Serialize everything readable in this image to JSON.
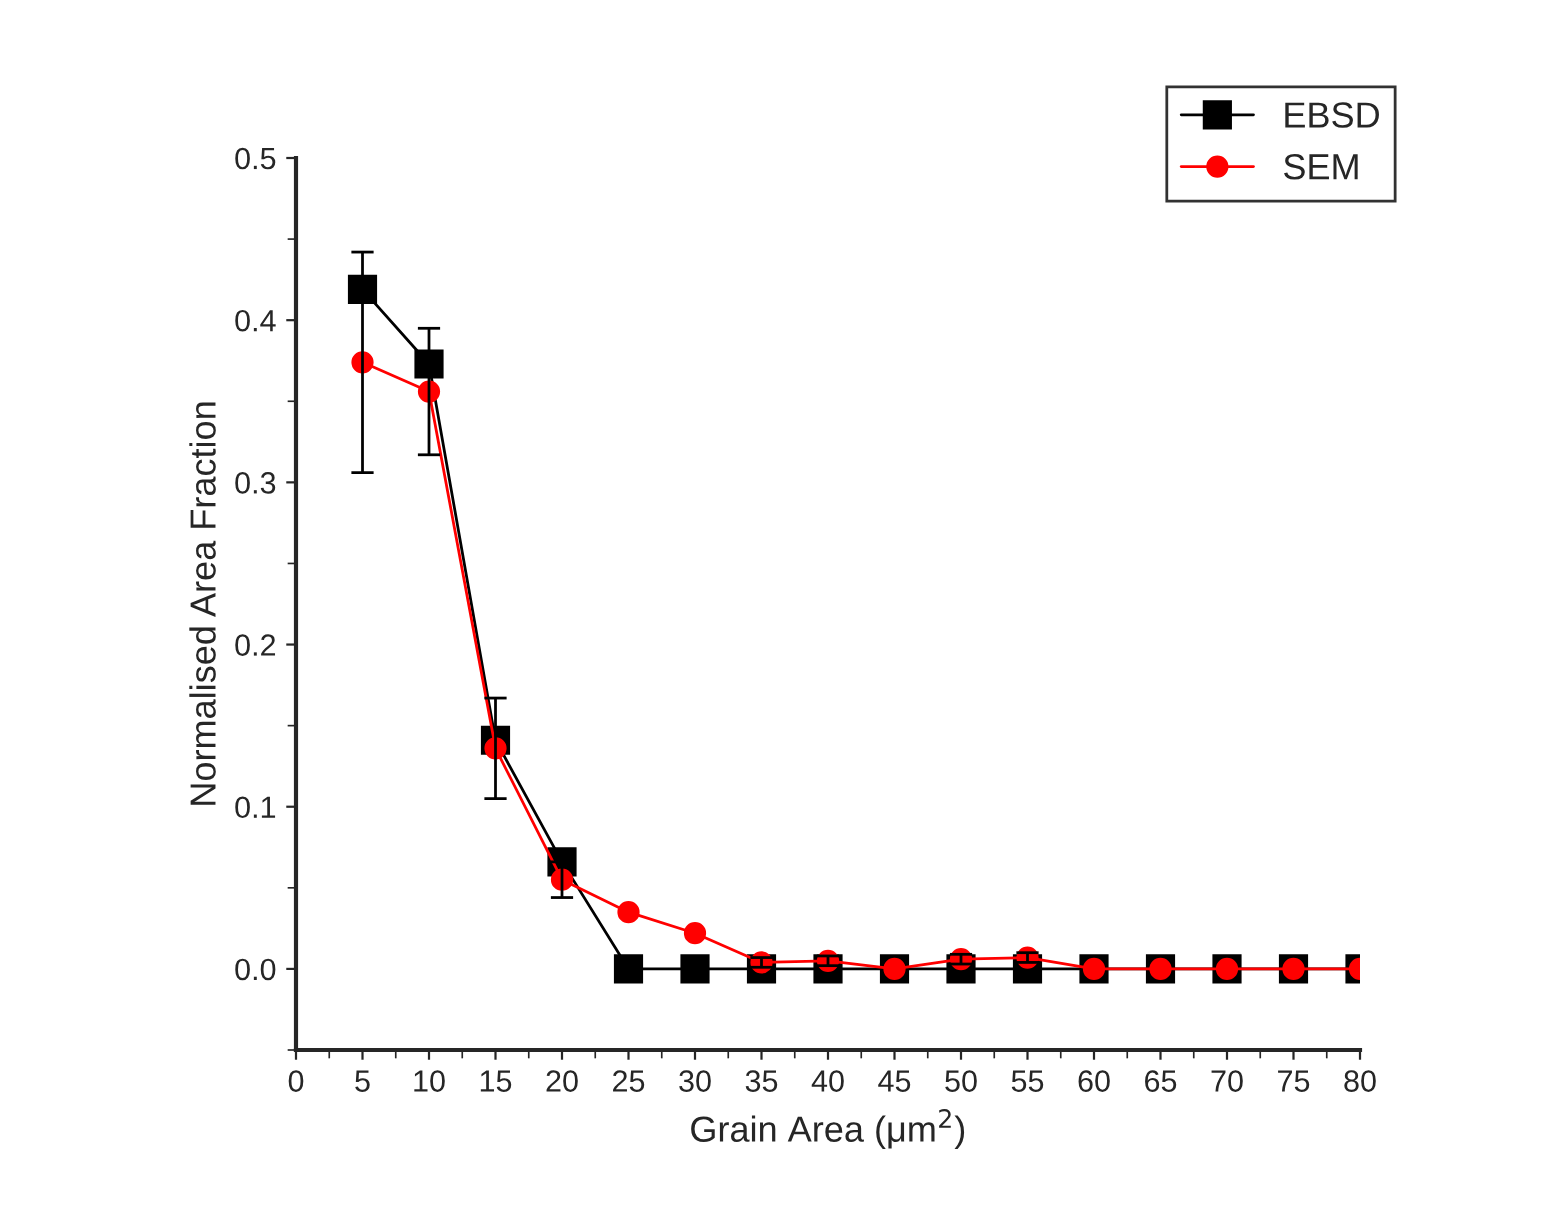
{
  "chart_data": {
    "type": "line",
    "xlabel": "Grain Area (μm$^{2}$)",
    "ylabel": "Normalised Area Fraction",
    "x": [
      5,
      10,
      15,
      20,
      25,
      30,
      35,
      40,
      45,
      50,
      55,
      60,
      65,
      70,
      75,
      80
    ],
    "series": [
      {
        "name": "EBSD",
        "color": "#000000",
        "marker": "square",
        "values": [
          0.419,
          0.373,
          0.141,
          0.066,
          0,
          0,
          0,
          0,
          0,
          0,
          0,
          0,
          0,
          0,
          0,
          0
        ]
      },
      {
        "name": "SEM",
        "color": "#ff0000",
        "marker": "circle",
        "values": [
          0.374,
          0.356,
          0.136,
          0.055,
          0.035,
          0.022,
          0.004,
          0.005,
          0,
          0.006,
          0.007,
          0,
          0,
          0,
          0,
          0
        ],
        "errors": [
          0.068,
          0.039,
          0.031,
          0.011,
          null,
          null,
          0.003,
          0.003,
          null,
          0.003,
          0.003,
          null,
          null,
          null,
          null,
          null
        ]
      }
    ],
    "xlim": [
      0,
      80
    ],
    "xticks": [
      0,
      5,
      10,
      15,
      20,
      25,
      30,
      35,
      40,
      45,
      50,
      55,
      60,
      65,
      70,
      75,
      80
    ],
    "ylim": [
      -0.05,
      0.5
    ],
    "yticks": [
      {
        "value": 0,
        "label": "0.0"
      },
      0.1,
      0.2,
      0.3,
      0.4,
      0.5
    ],
    "grid": false,
    "legend": "top right"
  }
}
